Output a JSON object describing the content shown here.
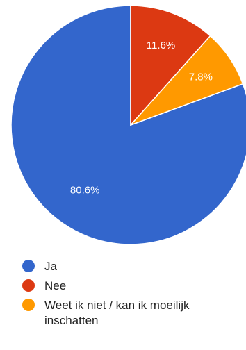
{
  "chart_data": {
    "type": "pie",
    "categories": [
      "Ja",
      "Nee",
      "Weet ik niet / kan ik moeilijk inschatten"
    ],
    "values": [
      80.6,
      11.6,
      7.8
    ],
    "labels": [
      "80.6%",
      "11.6%",
      "7.8%"
    ],
    "colors": [
      "#3366cc",
      "#dc3912",
      "#ff9900"
    ],
    "legend": "bottom"
  },
  "legend": {
    "items": [
      {
        "label": "Ja",
        "color": "#3366cc"
      },
      {
        "label": "Nee",
        "color": "#dc3912"
      },
      {
        "label": "Weet ik niet / kan ik moeilijk inschatten",
        "color": "#ff9900"
      }
    ]
  }
}
